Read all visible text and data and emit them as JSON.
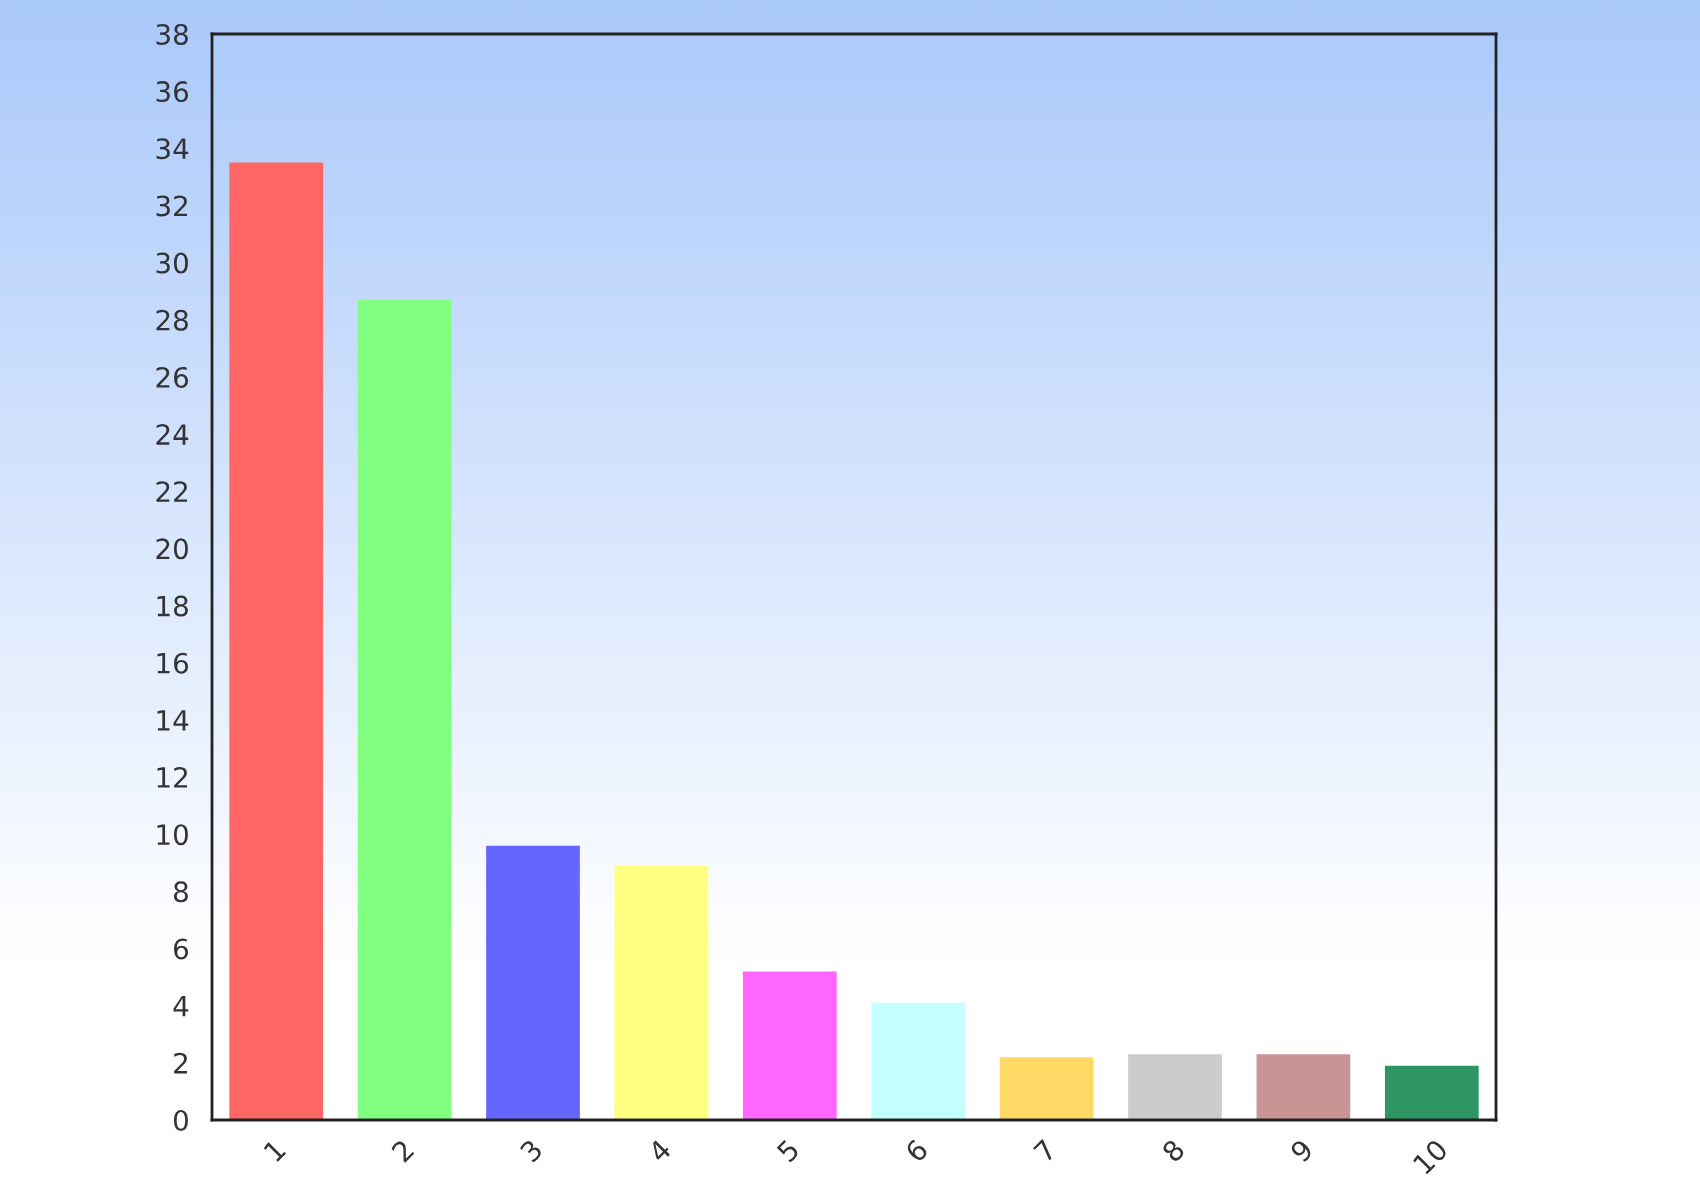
{
  "chart_data": {
    "type": "bar",
    "categories": [
      "1",
      "2",
      "3",
      "4",
      "5",
      "6",
      "7",
      "8",
      "9",
      "10"
    ],
    "values": [
      33.5,
      28.7,
      9.6,
      8.9,
      5.2,
      4.1,
      2.2,
      2.3,
      2.3,
      1.9
    ],
    "colors": [
      "#ff6666",
      "#80ff80",
      "#6666ff",
      "#ffff80",
      "#ff66ff",
      "#c4ffff",
      "#ffd966",
      "#cccccc",
      "#c99594",
      "#2e9662"
    ],
    "ylim": [
      0,
      38
    ],
    "yticks": [
      0,
      2,
      4,
      6,
      8,
      10,
      12,
      14,
      16,
      18,
      20,
      22,
      24,
      26,
      28,
      30,
      32,
      34,
      36,
      38
    ],
    "grid": false
  }
}
